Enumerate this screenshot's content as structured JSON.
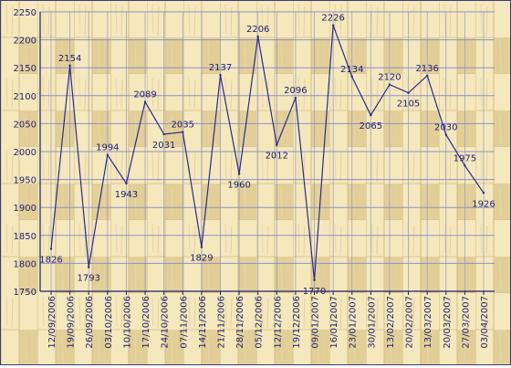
{
  "chart_data": {
    "type": "line",
    "title": "",
    "xlabel": "",
    "ylabel": "",
    "ylim": [
      1750,
      2250
    ],
    "y_ticks": [
      1750,
      1800,
      1850,
      1900,
      1950,
      2000,
      2050,
      2100,
      2150,
      2200,
      2250
    ],
    "grid": true,
    "background": "wood-parquet",
    "colors": {
      "line": "#2b2b8a",
      "grid": "#8f8fc8",
      "axis": "#1f1f70",
      "text": "#1f1f70",
      "wood_light": "#f5e8bd",
      "wood_dark": "#e2cf98"
    },
    "categories": [
      "12/09/2006",
      "19/09/2006",
      "26/09/2006",
      "03/10/2006",
      "10/10/2006",
      "17/10/2006",
      "24/10/2006",
      "07/11/2006",
      "14/11/2006",
      "21/11/2006",
      "28/11/2006",
      "05/12/2006",
      "12/12/2006",
      "19/12/2006",
      "09/01/2007",
      "16/01/2007",
      "23/01/2007",
      "30/01/2007",
      "13/02/2007",
      "20/02/2007",
      "13/03/2007",
      "20/03/2007",
      "27/03/2007",
      "03/04/2007"
    ],
    "values": [
      1826,
      2154,
      1793,
      1994,
      1943,
      2089,
      2031,
      2035,
      1829,
      2137,
      1960,
      2206,
      2012,
      2096,
      1770,
      2226,
      2134,
      2065,
      2120,
      2105,
      2136,
      2030,
      1975,
      1926
    ]
  }
}
